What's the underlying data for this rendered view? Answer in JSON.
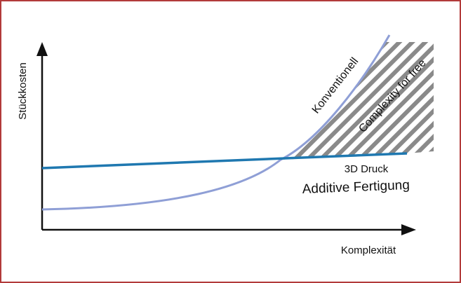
{
  "diagram": {
    "axes": {
      "y_label": "Stückkosten",
      "x_label": "Komplexität"
    },
    "curves": [
      {
        "id": "conventional",
        "label": "Konventionell",
        "shape": "exponential-rising",
        "color": "#8f9fd6"
      },
      {
        "id": "additive",
        "label_line1": "3D Druck",
        "label_line2": "Additive Fertigung",
        "shape": "near-flat-rising",
        "color": "#1f78b0"
      }
    ],
    "region": {
      "label": "Complexity for free",
      "fill": "hatched",
      "hatch_color": "#8a8a8a"
    },
    "colors": {
      "frame": "#b23a3a",
      "axis": "#111111"
    }
  }
}
